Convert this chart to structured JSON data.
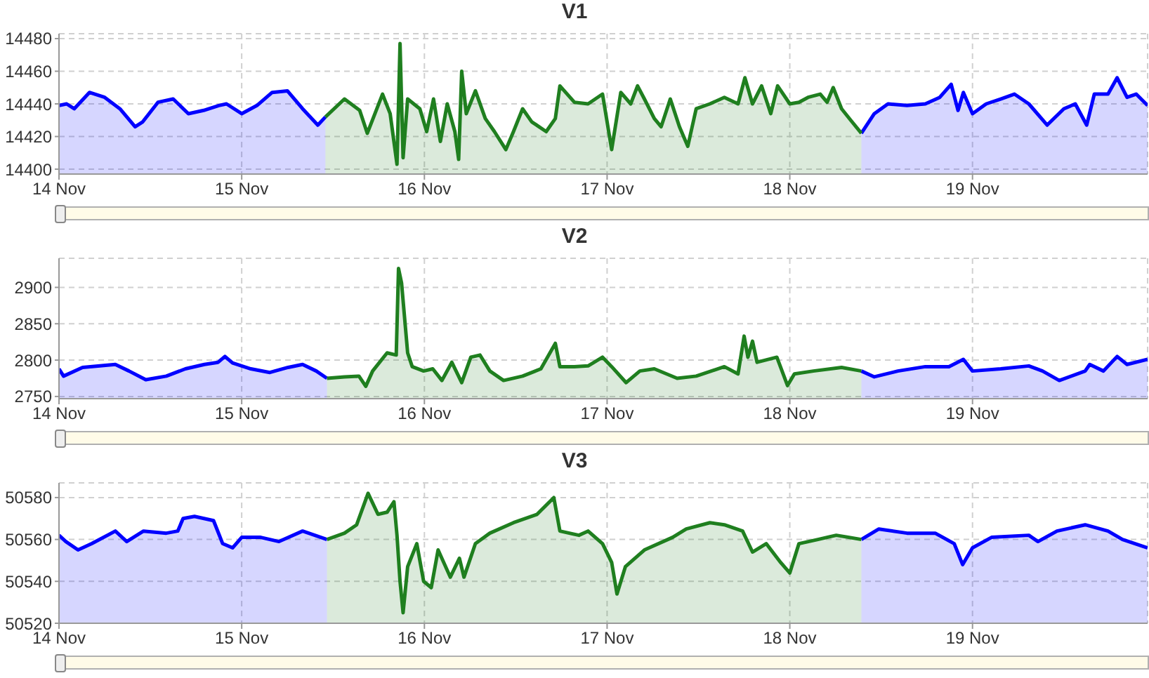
{
  "chart_data": [
    {
      "type": "area",
      "title": "V1",
      "xlim": [
        "--11-14",
        "--11-19T23:00"
      ],
      "xticks": [
        {
          "value": "--11-14",
          "label": "14 Nov"
        },
        {
          "value": "--11-15",
          "label": "15 Nov"
        },
        {
          "value": "--11-16",
          "label": "16 Nov"
        },
        {
          "value": "--11-17",
          "label": "17 Nov"
        },
        {
          "value": "--11-18",
          "label": "18 Nov"
        },
        {
          "value": "--11-19",
          "label": "19 Nov"
        }
      ],
      "ylim": [
        14397,
        14483
      ],
      "yticks": [
        14400,
        14420,
        14440,
        14460,
        14480
      ],
      "grid": true,
      "series": [
        {
          "color": "#0000ff",
          "x": [
            "--11-14T00:00",
            "--11-14T01:00",
            "--11-14T02:00",
            "--11-14T04:00",
            "--11-14T06:00",
            "--11-14T08:00",
            "--11-14T10:00",
            "--11-14T11:00",
            "--11-14T13:00",
            "--11-14T15:00",
            "--11-14T17:00",
            "--11-14T19:00",
            "--11-14T21:00",
            "--11-14T22:00",
            "--11-15T00:00",
            "--11-15T02:00",
            "--11-15T04:00",
            "--11-15T06:00",
            "--11-15T08:00",
            "--11-15T10:00",
            "--11-15T11:00",
            "--11-16T12:00",
            "--11-18T09:24",
            "--11-18T11:06",
            "--11-18T12:54",
            "--11-18T15:24",
            "--11-18T17:48",
            "--11-18T19:42",
            "--11-18T21:12",
            "--11-18T22:06",
            "--11-18T22:48",
            "--11-19T00:00",
            "--11-19T01:48",
            "--11-19T03:42",
            "--11-19T05:30",
            "--11-19T07:24",
            "--11-19T09:48",
            "--11-19T12:00",
            "--11-19T13:30",
            "--11-19T15:00",
            "--11-19T16:00",
            "--11-19T17:48",
            "--11-19T19:00",
            "--11-19T20:18",
            "--11-19T21:30",
            "--11-19T23:00"
          ],
          "values": [
            14439,
            14440,
            14437,
            14447,
            14444,
            14437,
            14426,
            14429,
            14441,
            14443,
            14434,
            14436,
            14439,
            14440,
            14434,
            14439,
            14447,
            14448,
            14437,
            14427,
            14432,
            null,
            14422,
            14434,
            14440,
            14439,
            14440,
            14444,
            14452,
            14436,
            14447,
            14434,
            14440,
            14443,
            14446,
            14440,
            14427,
            14437,
            14440,
            14427,
            14446,
            14446,
            14456,
            14444,
            14446,
            14439
          ]
        },
        {
          "color": "#1f7f1f",
          "x": [
            "--11-15T11:00",
            "--11-15T13:30",
            "--11-15T15:30",
            "--11-15T16:30",
            "--11-15T18:30",
            "--11-15T19:30",
            "--11-15T20:24",
            "--11-15T20:48",
            "--11-15T21:12",
            "--11-15T21:48",
            "--11-15T23:24",
            "--11-16T00:18",
            "--11-16T01:12",
            "--11-16T02:06",
            "--11-16T03:00",
            "--11-16T04:00",
            "--11-16T04:30",
            "--11-16T04:54",
            "--11-16T05:30",
            "--11-16T06:42",
            "--11-16T08:00",
            "--11-16T09:12",
            "--11-16T10:42",
            "--11-16T11:42",
            "--11-16T12:54",
            "--11-16T14:06",
            "--11-16T16:00",
            "--11-16T17:12",
            "--11-16T17:48",
            "--11-16T19:42",
            "--11-16T21:30",
            "--11-16T23:24",
            "--11-17T00:36",
            "--11-17T01:48",
            "--11-17T03:06",
            "--11-17T04:00",
            "--11-17T04:54",
            "--11-17T06:12",
            "--11-17T07:06",
            "--11-17T08:18",
            "--11-17T09:30",
            "--11-17T10:36",
            "--11-17T11:42",
            "--11-17T13:30",
            "--11-17T15:24",
            "--11-17T17:12",
            "--11-17T18:06",
            "--11-17T19:06",
            "--11-17T20:18",
            "--11-17T21:30",
            "--11-17T22:24",
            "--11-18T00:00",
            "--11-18T01:12",
            "--11-18T02:24",
            "--11-18T04:00",
            "--11-18T04:54",
            "--11-18T05:42",
            "--11-18T06:48",
            "--11-18T08:00",
            "--11-18T09:24"
          ],
          "values": [
            14432,
            14443,
            14436,
            14422,
            14446,
            14434,
            14403,
            14477,
            14407,
            14443,
            14437,
            14423,
            14443,
            14417,
            14440,
            14423,
            14406,
            14460,
            14434,
            14448,
            14431,
            14423,
            14412,
            14423,
            14437,
            14429,
            14423,
            14431,
            14451,
            14441,
            14440,
            14446,
            14412,
            14447,
            14440,
            14451,
            14443,
            14431,
            14426,
            14443,
            14426,
            14414,
            14437,
            14440,
            14444,
            14440,
            14456,
            14440,
            14451,
            14434,
            14451,
            14440,
            14441,
            14444,
            14446,
            14441,
            14450,
            14437,
            14430,
            14422
          ]
        }
      ]
    },
    {
      "type": "area",
      "title": "V2",
      "xlim": [
        "--11-14",
        "--11-19T23:00"
      ],
      "xticks": [
        {
          "value": "--11-14",
          "label": "14 Nov"
        },
        {
          "value": "--11-15",
          "label": "15 Nov"
        },
        {
          "value": "--11-16",
          "label": "16 Nov"
        },
        {
          "value": "--11-17",
          "label": "17 Nov"
        },
        {
          "value": "--11-18",
          "label": "18 Nov"
        },
        {
          "value": "--11-19",
          "label": "19 Nov"
        }
      ],
      "ylim": [
        2747,
        2940
      ],
      "yticks": [
        2750,
        2800,
        2850,
        2900
      ],
      "grid": true,
      "series": [
        {
          "color": "#0000ff",
          "x": [
            "--11-14T00:00",
            "--11-14T00:36",
            "--11-14T03:06",
            "--11-14T07:24",
            "--11-14T09:12",
            "--11-14T11:24",
            "--11-14T14:06",
            "--11-14T16:36",
            "--11-14T19:06",
            "--11-14T20:54",
            "--11-14T21:48",
            "--11-14T22:48",
            "--11-15T01:12",
            "--11-15T03:42",
            "--11-15T06:06",
            "--11-15T08:00",
            "--11-15T09:48",
            "--11-15T11:12",
            "--11-16T12:00",
            "--11-18T09:24",
            "--11-18T11:06",
            "--11-18T14:12",
            "--11-18T17:48",
            "--11-18T20:54",
            "--11-18T22:48",
            "--11-19T00:00",
            "--11-19T03:42",
            "--11-19T07:24",
            "--11-19T09:12",
            "--11-19T11:24",
            "--11-19T14:48",
            "--11-19T15:24",
            "--11-19T17:12",
            "--11-19T19:00",
            "--11-19T20:18",
            "--11-19T23:00"
          ],
          "values": [
            2788,
            2778,
            2790,
            2794,
            2785,
            2773,
            2778,
            2788,
            2794,
            2797,
            2805,
            2796,
            2788,
            2783,
            2790,
            2794,
            2785,
            2775,
            null,
            2785,
            2777,
            2785,
            2791,
            2791,
            2801,
            2785,
            2788,
            2792,
            2785,
            2772,
            2785,
            2794,
            2785,
            2805,
            2794,
            2801
          ]
        },
        {
          "color": "#1f7f1f",
          "x": [
            "--11-15T11:12",
            "--11-15T13:30",
            "--11-15T15:24",
            "--11-15T16:18",
            "--11-15T17:12",
            "--11-15T19:06",
            "--11-15T20:18",
            "--11-15T20:36",
            "--11-15T21:00",
            "--11-15T21:48",
            "--11-15T22:24",
            "--11-15T23:54",
            "--11-16T01:06",
            "--11-16T02:18",
            "--11-16T03:36",
            "--11-16T04:54",
            "--11-16T06:06",
            "--11-16T07:18",
            "--11-16T08:36",
            "--11-16T10:24",
            "--11-16T12:54",
            "--11-16T15:18",
            "--11-16T17:12",
            "--11-16T17:48",
            "--11-16T19:42",
            "--11-16T21:30",
            "--11-16T23:24",
            "--11-17T00:36",
            "--11-17T02:30",
            "--11-17T04:18",
            "--11-17T06:12",
            "--11-17T09:12",
            "--11-17T11:42",
            "--11-17T15:24",
            "--11-17T17:12",
            "--11-17T18:00",
            "--11-17T18:30",
            "--11-17T19:06",
            "--11-17T19:42",
            "--11-17T22:18",
            "--11-17T23:42",
            "--11-18T00:36",
            "--11-18T03:06",
            "--11-18T06:48",
            "--11-18T09:24"
          ],
          "values": [
            2775,
            2777,
            2778,
            2764,
            2785,
            2810,
            2807,
            2926,
            2906,
            2810,
            2791,
            2785,
            2788,
            2772,
            2797,
            2769,
            2804,
            2807,
            2785,
            2772,
            2778,
            2788,
            2823,
            2791,
            2791,
            2792,
            2804,
            2791,
            2769,
            2785,
            2788,
            2775,
            2778,
            2791,
            2781,
            2833,
            2804,
            2826,
            2797,
            2804,
            2765,
            2781,
            2785,
            2790,
            2785
          ]
        }
      ]
    },
    {
      "type": "area",
      "title": "V3",
      "xlim": [
        "--11-14",
        "--11-19T23:00"
      ],
      "xticks": [
        {
          "value": "--11-14",
          "label": "14 Nov"
        },
        {
          "value": "--11-15",
          "label": "15 Nov"
        },
        {
          "value": "--11-16",
          "label": "16 Nov"
        },
        {
          "value": "--11-17",
          "label": "17 Nov"
        },
        {
          "value": "--11-18",
          "label": "18 Nov"
        },
        {
          "value": "--11-19",
          "label": "19 Nov"
        }
      ],
      "ylim": [
        50520,
        50587
      ],
      "yticks": [
        50520,
        50540,
        50560,
        50580
      ],
      "grid": true,
      "series": [
        {
          "color": "#0000ff",
          "x": [
            "--11-14T00:00",
            "--11-14T00:54",
            "--11-14T02:30",
            "--11-14T04:18",
            "--11-14T07:24",
            "--11-14T08:54",
            "--11-14T11:06",
            "--11-14T14:06",
            "--11-14T15:36",
            "--11-14T16:18",
            "--11-14T17:48",
            "--11-14T20:18",
            "--11-14T21:30",
            "--11-14T22:48",
            "--11-15T00:00",
            "--11-15T02:30",
            "--11-15T04:54",
            "--11-15T08:00",
            "--11-15T11:12",
            "--11-16T12:00",
            "--11-18T09:24",
            "--11-18T11:42",
            "--11-18T15:24",
            "--11-18T19:06",
            "--11-18T21:36",
            "--11-18T22:42",
            "--11-19T00:00",
            "--11-19T02:30",
            "--11-19T07:24",
            "--11-19T08:36",
            "--11-19T11:06",
            "--11-19T14:48",
            "--11-19T17:48",
            "--11-19T19:42",
            "--11-19T23:00"
          ],
          "values": [
            50562,
            50559,
            50555,
            50558,
            50564,
            50559,
            50564,
            50563,
            50564,
            50570,
            50571,
            50569,
            50558,
            50556,
            50561,
            50561,
            50559,
            50564,
            50560,
            null,
            50560,
            50565,
            50563,
            50563,
            50558,
            50548,
            50556,
            50561,
            50562,
            50559,
            50564,
            50567,
            50564,
            50560,
            50556
          ]
        },
        {
          "color": "#1f7f1f",
          "x": [
            "--11-15T11:12",
            "--11-15T13:30",
            "--11-15T15:06",
            "--11-15T16:36",
            "--11-15T17:54",
            "--11-15T19:06",
            "--11-15T20:00",
            "--11-15T20:24",
            "--11-15T20:48",
            "--11-15T21:12",
            "--11-15T21:48",
            "--11-15T23:00",
            "--11-15T23:54",
            "--11-16T00:54",
            "--11-16T01:48",
            "--11-16T03:24",
            "--11-16T04:36",
            "--11-16T05:12",
            "--11-16T06:42",
            "--11-16T08:36",
            "--11-16T11:42",
            "--11-16T14:48",
            "--11-16T17:00",
            "--11-16T17:48",
            "--11-16T20:18",
            "--11-16T21:30",
            "--11-16T23:24",
            "--11-17T00:36",
            "--11-17T01:18",
            "--11-17T02:24",
            "--11-17T04:54",
            "--11-17T08:36",
            "--11-17T10:24",
            "--11-17T13:30",
            "--11-17T15:24",
            "--11-17T17:48",
            "--11-17T19:06",
            "--11-17T20:54",
            "--11-17T22:48",
            "--11-18T00:00",
            "--11-18T01:12",
            "--11-18T03:42",
            "--11-18T06:06",
            "--11-18T09:24"
          ],
          "values": [
            50560,
            50563,
            50567,
            50582,
            50572,
            50573,
            50578,
            50562,
            50540,
            50525,
            50547,
            50558,
            50540,
            50537,
            50555,
            50542,
            50551,
            50542,
            50558,
            50563,
            50568,
            50572,
            50580,
            50564,
            50562,
            50564,
            50558,
            50549,
            50534,
            50547,
            50555,
            50561,
            50565,
            50568,
            50567,
            50564,
            50554,
            50558,
            50549,
            50544,
            50558,
            50560,
            50562,
            50560
          ]
        }
      ]
    }
  ]
}
